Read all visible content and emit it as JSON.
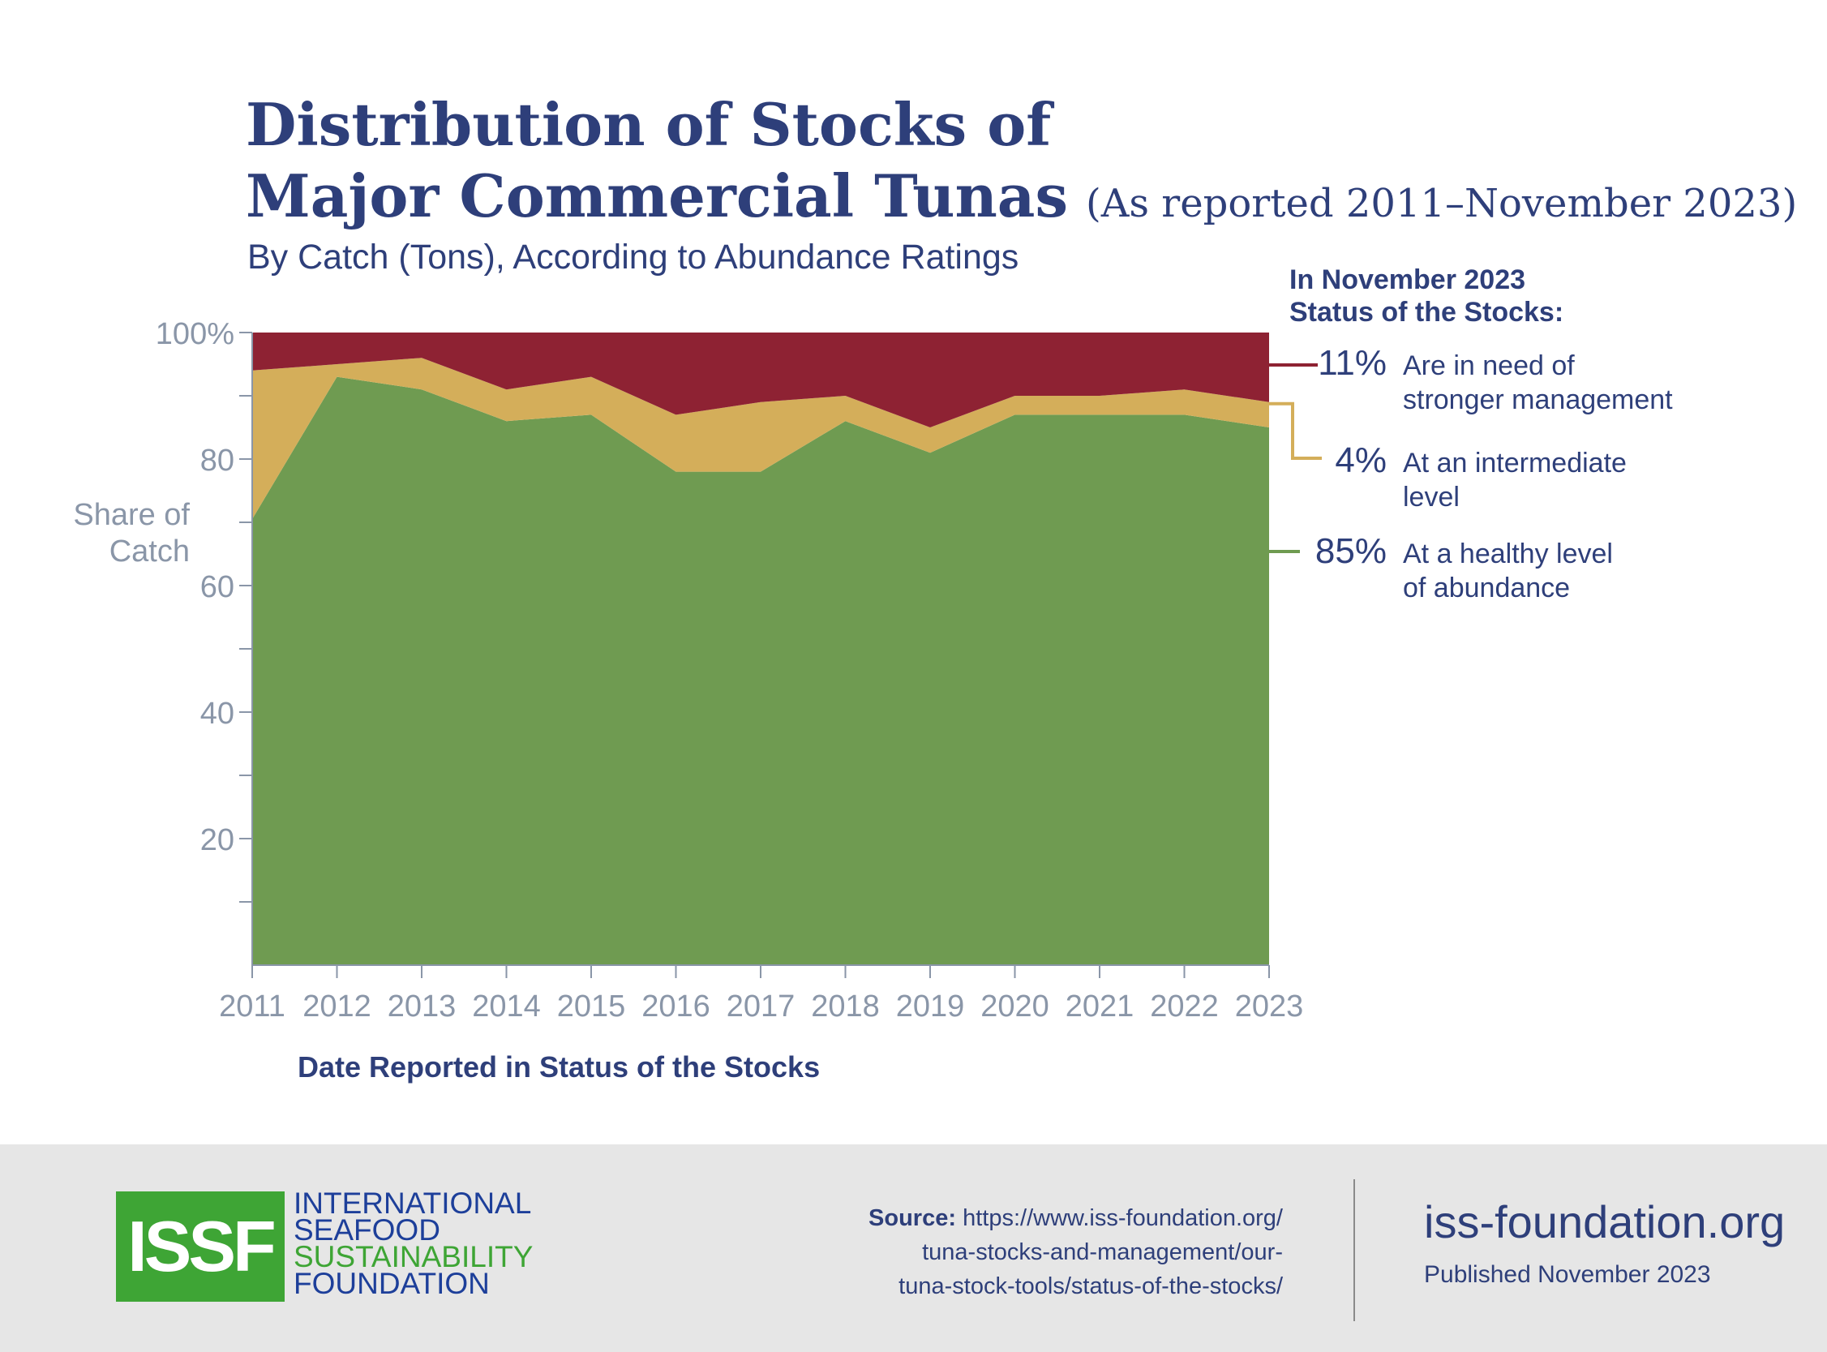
{
  "title": {
    "line1": "Distribution of Stocks of",
    "line2": "Major Commercial Tunas",
    "suffix": "(As reported 2011–November 2023)"
  },
  "subtitle": "By Catch (Tons), According to Abundance Ratings",
  "chart_data": {
    "type": "area",
    "stacked": true,
    "x": [
      2011,
      2012,
      2013,
      2014,
      2015,
      2016,
      2017,
      2018,
      2019,
      2020,
      2021,
      2022,
      2023
    ],
    "series": [
      {
        "key": "healthy",
        "color": "#6f9b51",
        "values": [
          70.5,
          93,
          91,
          86,
          87,
          78,
          78,
          86,
          81,
          87,
          87,
          87,
          85
        ]
      },
      {
        "key": "intermediate",
        "color": "#d4ae5a",
        "values": [
          23.5,
          2,
          5,
          5,
          6,
          9,
          11,
          4,
          4,
          3,
          3,
          4,
          4
        ]
      },
      {
        "key": "stronger_management",
        "color": "#8e2233",
        "values": [
          6,
          5,
          4,
          9,
          7,
          13,
          11,
          10,
          15,
          10,
          10,
          9,
          11
        ]
      }
    ],
    "ylim": [
      0,
      100
    ],
    "y_ticks": [
      20,
      40,
      60,
      80,
      100
    ],
    "y_tick_labels": [
      "20",
      "40",
      "60",
      "80",
      "100%"
    ],
    "y_minor_step": 10,
    "ylabel": "Share of Catch",
    "xlabel": "Date Reported in Status of the Stocks",
    "grid": false
  },
  "status_box": {
    "heading_line1": "In November 2023",
    "heading_line2": "Status of the Stocks:",
    "items": [
      {
        "pct": "11%",
        "line1": "Are in need of",
        "line2": "stronger management",
        "color": "#8e2233"
      },
      {
        "pct": "4%",
        "line1": "At an intermediate",
        "line2": "level",
        "color": "#d4ae5a"
      },
      {
        "pct": "85%",
        "line1": "At a healthy level",
        "line2": "of abundance",
        "color": "#6f9b51"
      }
    ]
  },
  "footer": {
    "logo_text": "ISSF",
    "org_lines": [
      "INTERNATIONAL",
      "SEAFOOD",
      "SUSTAINABILITY",
      "FOUNDATION"
    ],
    "source_label": "Source:",
    "source_lines": [
      "https://www.iss-foundation.org/",
      "tuna-stocks-and-management/our-",
      "tuna-stock-tools/status-of-the-stocks/"
    ],
    "website": "iss-foundation.org",
    "published": "Published November 2023"
  }
}
